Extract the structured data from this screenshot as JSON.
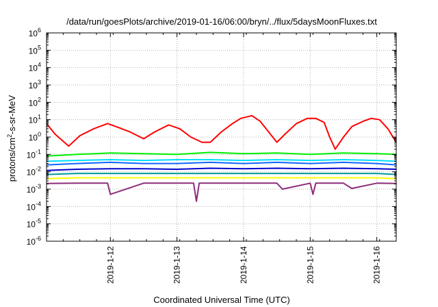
{
  "chart_data": {
    "type": "line",
    "title": "/data/run/goesPlots/archive/2019-01-16/06:00/bryn/../flux/5daysMoonFluxes.txt",
    "xlabel": "Coordinated Universal Time (UTC)",
    "ylabel": {
      "prefix": "protons/cm",
      "sup": "2",
      "suffix": "-s-sr-MeV"
    },
    "y_scale": "log",
    "ylim": [
      1e-06,
      1000000.0
    ],
    "y_ticks": [
      {
        "base": "10",
        "exp": "-6",
        "value": 1e-06
      },
      {
        "base": "10",
        "exp": "-5",
        "value": 1e-05
      },
      {
        "base": "10",
        "exp": "-4",
        "value": 0.0001
      },
      {
        "base": "10",
        "exp": "-3",
        "value": 0.001
      },
      {
        "base": "10",
        "exp": "-2",
        "value": 0.01
      },
      {
        "base": "10",
        "exp": "-1",
        "value": 0.1
      },
      {
        "base": "10",
        "exp": "0",
        "value": 1
      },
      {
        "base": "10",
        "exp": "1",
        "value": 10
      },
      {
        "base": "10",
        "exp": "2",
        "value": 100
      },
      {
        "base": "10",
        "exp": "3",
        "value": 1000
      },
      {
        "base": "10",
        "exp": "4",
        "value": 10000
      },
      {
        "base": "10",
        "exp": "5",
        "value": 100000
      },
      {
        "base": "10",
        "exp": "6",
        "value": 1000000
      }
    ],
    "x_range": [
      "2019-01-11 01:00",
      "2019-01-16 07:00"
    ],
    "x_ticks": [
      "2019-1-12",
      "2019-1-13",
      "2019-1-14",
      "2019-1-15",
      "2019-1-16"
    ],
    "x_tick_dates": [
      "2019-01-12",
      "2019-01-13",
      "2019-01-14",
      "2019-01-15",
      "2019-01-16"
    ],
    "grid": true,
    "legend": "none",
    "series": [
      {
        "color": "#ff0000",
        "x": [
          "2019-01-11 01:00",
          "2019-01-11 04:00",
          "2019-01-11 09:00",
          "2019-01-11 13:00",
          "2019-01-11 18:00",
          "2019-01-11 23:00",
          "2019-01-12 03:00",
          "2019-01-12 07:00",
          "2019-01-12 12:00",
          "2019-01-12 16:00",
          "2019-01-12 21:00",
          "2019-01-13 01:00",
          "2019-01-13 05:00",
          "2019-01-13 09:00",
          "2019-01-13 12:00",
          "2019-01-13 16:00",
          "2019-01-13 20:00",
          "2019-01-13 23:00",
          "2019-01-14 03:00",
          "2019-01-14 06:00",
          "2019-01-14 09:00",
          "2019-01-14 12:00",
          "2019-01-14 15:00",
          "2019-01-14 19:00",
          "2019-01-14 23:00",
          "2019-01-15 02:00",
          "2019-01-15 05:00",
          "2019-01-15 07:00",
          "2019-01-15 09:00",
          "2019-01-15 12:00",
          "2019-01-15 15:00",
          "2019-01-15 19:00",
          "2019-01-15 22:00",
          "2019-01-16 01:00",
          "2019-01-16 04:00",
          "2019-01-16 06:00",
          "2019-01-16 07:00"
        ],
        "values": [
          6,
          1.5,
          0.3,
          1.2,
          3,
          6,
          3.5,
          2,
          0.8,
          2,
          5,
          3,
          1,
          0.5,
          0.5,
          2,
          6,
          12,
          17,
          8,
          2,
          0.5,
          1.5,
          6,
          12,
          12,
          7,
          1,
          0.2,
          1,
          4,
          8,
          12,
          10,
          3,
          0.9,
          0.5
        ]
      },
      {
        "color": "#00ee00",
        "x": [
          "2019-01-11 01:00",
          "2019-01-11 12:00",
          "2019-01-12 00:00",
          "2019-01-12 12:00",
          "2019-01-13 00:00",
          "2019-01-13 12:00",
          "2019-01-14 00:00",
          "2019-01-14 12:00",
          "2019-01-15 00:00",
          "2019-01-15 12:00",
          "2019-01-16 00:00",
          "2019-01-16 07:00"
        ],
        "values": [
          0.08,
          0.1,
          0.12,
          0.11,
          0.1,
          0.13,
          0.11,
          0.12,
          0.1,
          0.12,
          0.11,
          0.1
        ]
      },
      {
        "color": "#00ddff",
        "x": [
          "2019-01-11 01:00",
          "2019-01-11 12:00",
          "2019-01-12 00:00",
          "2019-01-12 12:00",
          "2019-01-13 00:00",
          "2019-01-13 12:00",
          "2019-01-14 00:00",
          "2019-01-14 12:00",
          "2019-01-15 00:00",
          "2019-01-15 12:00",
          "2019-01-16 00:00",
          "2019-01-16 07:00"
        ],
        "values": [
          0.04,
          0.045,
          0.05,
          0.045,
          0.05,
          0.05,
          0.045,
          0.05,
          0.045,
          0.05,
          0.045,
          0.04
        ]
      },
      {
        "color": "#1166ff",
        "x": [
          "2019-01-11 01:00",
          "2019-01-11 12:00",
          "2019-01-12 00:00",
          "2019-01-12 12:00",
          "2019-01-13 00:00",
          "2019-01-13 12:00",
          "2019-01-14 00:00",
          "2019-01-14 12:00",
          "2019-01-15 00:00",
          "2019-01-15 12:00",
          "2019-01-16 00:00",
          "2019-01-16 07:00"
        ],
        "values": [
          0.025,
          0.03,
          0.035,
          0.03,
          0.03,
          0.035,
          0.03,
          0.035,
          0.03,
          0.035,
          0.03,
          0.025
        ]
      },
      {
        "color": "#0000cc",
        "x": [
          "2019-01-11 01:00",
          "2019-01-11 12:00",
          "2019-01-12 00:00",
          "2019-01-12 12:00",
          "2019-01-13 00:00",
          "2019-01-13 12:00",
          "2019-01-14 00:00",
          "2019-01-14 12:00",
          "2019-01-15 00:00",
          "2019-01-15 12:00",
          "2019-01-16 00:00",
          "2019-01-16 07:00"
        ],
        "values": [
          0.012,
          0.014,
          0.015,
          0.015,
          0.014,
          0.016,
          0.015,
          0.016,
          0.015,
          0.016,
          0.015,
          0.014
        ]
      },
      {
        "color": "#009999",
        "x": [
          "2019-01-11 01:00",
          "2019-01-11 12:00",
          "2019-01-12 00:00",
          "2019-01-12 12:00",
          "2019-01-13 00:00",
          "2019-01-13 12:00",
          "2019-01-14 00:00",
          "2019-01-14 12:00",
          "2019-01-15 00:00",
          "2019-01-15 12:00",
          "2019-01-16 00:00",
          "2019-01-16 07:00"
        ],
        "values": [
          0.007,
          0.008,
          0.008,
          0.008,
          0.008,
          0.008,
          0.008,
          0.008,
          0.008,
          0.008,
          0.008,
          0.007
        ]
      },
      {
        "color": "#ffff00",
        "x": [
          "2019-01-11 01:00",
          "2019-01-11 12:00",
          "2019-01-12 00:00",
          "2019-01-12 12:00",
          "2019-01-13 00:00",
          "2019-01-13 12:00",
          "2019-01-14 00:00",
          "2019-01-14 12:00",
          "2019-01-15 00:00",
          "2019-01-15 12:00",
          "2019-01-16 00:00",
          "2019-01-16 07:00"
        ],
        "values": [
          0.004,
          0.0045,
          0.0045,
          0.0045,
          0.0045,
          0.0045,
          0.0045,
          0.0045,
          0.0045,
          0.0045,
          0.0045,
          0.004
        ]
      },
      {
        "color": "#8b2c7a",
        "x": [
          "2019-01-11 01:00",
          "2019-01-11 12:00",
          "2019-01-11 23:00",
          "2019-01-12 00:00",
          "2019-01-12 12:00",
          "2019-01-13 06:00",
          "2019-01-13 07:00",
          "2019-01-13 08:00",
          "2019-01-13 12:00",
          "2019-01-14 12:00",
          "2019-01-14 14:00",
          "2019-01-15 00:00",
          "2019-01-15 01:00",
          "2019-01-15 02:00",
          "2019-01-15 12:00",
          "2019-01-15 15:00",
          "2019-01-16 00:00",
          "2019-01-16 07:00"
        ],
        "values": [
          0.0021,
          0.0022,
          0.0022,
          0.0005,
          0.0022,
          0.0022,
          0.0002,
          0.0022,
          0.0022,
          0.0022,
          0.001,
          0.0022,
          0.0005,
          0.0022,
          0.0022,
          0.0011,
          0.0022,
          0.0021
        ]
      }
    ]
  }
}
